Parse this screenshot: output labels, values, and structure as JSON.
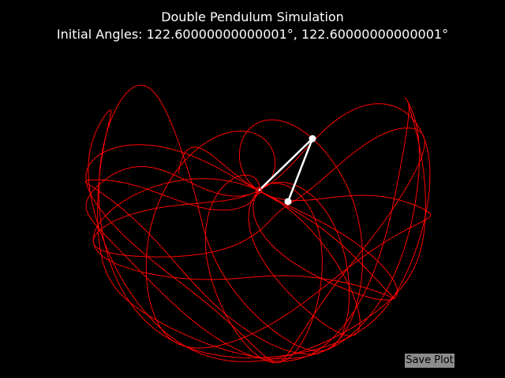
{
  "window": {
    "title": "Double Pendulum Simulation",
    "subtitle": "Initial Angles: 122.60000000000001°, 122.60000000000001°"
  },
  "controls": {
    "save_label": "Save Plot"
  },
  "colors": {
    "background": "#000000",
    "trace": "#ff0000",
    "pendulum": "#ffffff",
    "button": "#8c8c8c"
  },
  "chart_data": {
    "type": "line",
    "title": "Double Pendulum Simulation\nInitial Angles: 122.60000000000001°, 122.60000000000001°",
    "xlabel": "",
    "ylabel": "",
    "grid": false,
    "axes_visible": false,
    "series": [
      {
        "role": "trace-of-second-bob",
        "note_units": "normalized lengths, pivot at (0,0), y up",
        "theta1_deg": 122.6,
        "theta2_deg": 122.6
      }
    ],
    "pendulum": {
      "pivot": [
        0,
        0
      ],
      "bob1": [
        0.42,
        0.41
      ],
      "bob2": [
        0.23,
        -0.09
      ]
    }
  }
}
